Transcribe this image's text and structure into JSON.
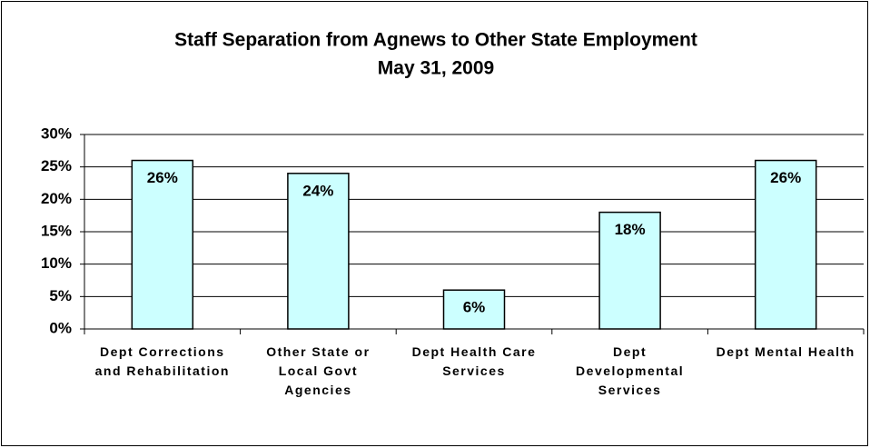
{
  "chart_data": {
    "type": "bar",
    "title": "Staff Separation from Agnews to Other State Employment",
    "subtitle": "May 31, 2009",
    "categories": [
      "Dept Corrections and Rehabilitation",
      "Other State or Local Govt Agencies",
      "Dept Health Care Services",
      "Dept Developmental Services",
      "Dept Mental Health"
    ],
    "values": [
      26,
      24,
      6,
      18,
      26
    ],
    "value_labels": [
      "26%",
      "24%",
      "6%",
      "18%",
      "26%"
    ],
    "color": "#ccffff",
    "ylim": [
      0,
      30
    ],
    "yticks": [
      {
        "value": 0,
        "label": "0%"
      },
      {
        "value": 5,
        "label": "5%"
      },
      {
        "value": 10,
        "label": "10%"
      },
      {
        "value": 15,
        "label": "15%"
      },
      {
        "value": 20,
        "label": "20%"
      },
      {
        "value": 25,
        "label": "25%"
      },
      {
        "value": 30,
        "label": "30%"
      }
    ],
    "grid": true
  }
}
